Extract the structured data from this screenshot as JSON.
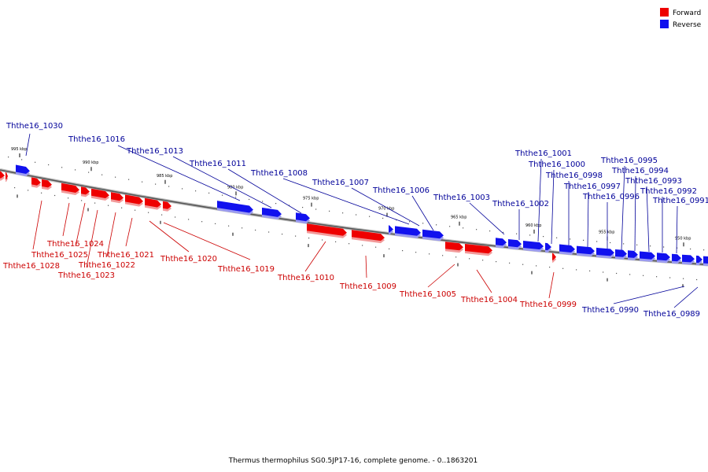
{
  "legend": {
    "forward": {
      "label": "Forward",
      "color": "#ee0000"
    },
    "reverse": {
      "label": "Reverse",
      "color": "#1111ee"
    }
  },
  "caption": "Thermus thermophilus SG0.5JP17-16, complete genome. - 0..1863201",
  "ticks": [
    "995 kbp",
    "990 kbp",
    "985 kbp",
    "980 kbp",
    "975 kbp",
    "970 kbp",
    "965 kbp",
    "960 kbp",
    "955 kbp",
    "950 kbp"
  ],
  "genes": [
    {
      "label": "Ththe16_1030",
      "strand": "reverse"
    },
    {
      "label": "Ththe16_1028",
      "strand": "forward"
    },
    {
      "label": "Ththe16_1025",
      "strand": "forward"
    },
    {
      "label": "Ththe16_1024",
      "strand": "forward"
    },
    {
      "label": "Ththe16_1023",
      "strand": "forward"
    },
    {
      "label": "Ththe16_1022",
      "strand": "forward"
    },
    {
      "label": "Ththe16_1021",
      "strand": "forward"
    },
    {
      "label": "Ththe16_1020",
      "strand": "forward"
    },
    {
      "label": "Ththe16_1019",
      "strand": "forward"
    },
    {
      "label": "Ththe16_1016",
      "strand": "reverse"
    },
    {
      "label": "Ththe16_1013",
      "strand": "reverse"
    },
    {
      "label": "Ththe16_1011",
      "strand": "reverse"
    },
    {
      "label": "Ththe16_1010",
      "strand": "forward"
    },
    {
      "label": "Ththe16_1009",
      "strand": "forward"
    },
    {
      "label": "Ththe16_1008",
      "strand": "reverse"
    },
    {
      "label": "Ththe16_1007",
      "strand": "reverse"
    },
    {
      "label": "Ththe16_1006",
      "strand": "reverse"
    },
    {
      "label": "Ththe16_1005",
      "strand": "forward"
    },
    {
      "label": "Ththe16_1004",
      "strand": "forward"
    },
    {
      "label": "Ththe16_1003",
      "strand": "reverse"
    },
    {
      "label": "Ththe16_1002",
      "strand": "reverse"
    },
    {
      "label": "Ththe16_1001",
      "strand": "reverse"
    },
    {
      "label": "Ththe16_1000",
      "strand": "reverse"
    },
    {
      "label": "Ththe16_0999",
      "strand": "forward"
    },
    {
      "label": "Ththe16_0998",
      "strand": "reverse"
    },
    {
      "label": "Ththe16_0997",
      "strand": "reverse"
    },
    {
      "label": "Ththe16_0996",
      "strand": "reverse"
    },
    {
      "label": "Ththe16_0995",
      "strand": "reverse"
    },
    {
      "label": "Ththe16_0994",
      "strand": "reverse"
    },
    {
      "label": "Ththe16_0993",
      "strand": "reverse"
    },
    {
      "label": "Ththe16_0992",
      "strand": "reverse"
    },
    {
      "label": "Ththe16_0991",
      "strand": "reverse"
    },
    {
      "label": "Ththe16_0990",
      "strand": "reverse"
    },
    {
      "label": "Ththe16_0989",
      "strand": "reverse"
    }
  ]
}
